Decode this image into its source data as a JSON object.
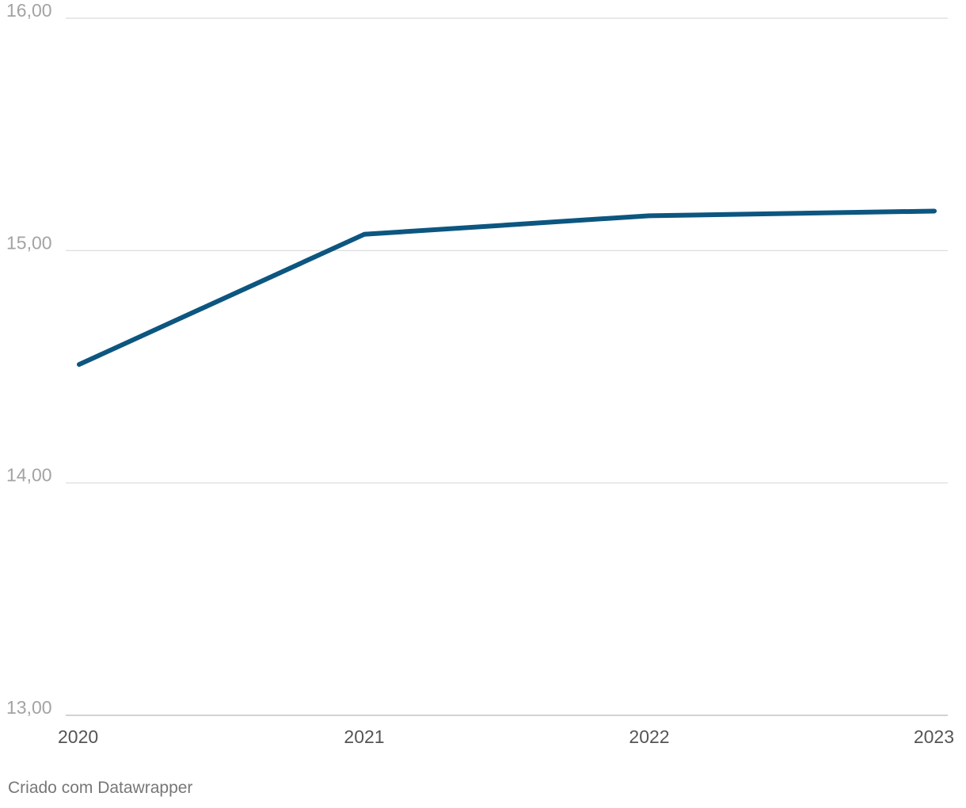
{
  "chart_data": {
    "type": "line",
    "x": [
      "2020",
      "2021",
      "2022",
      "2023"
    ],
    "series": [
      {
        "values": [
          14.51,
          15.07,
          15.15,
          15.17
        ]
      }
    ],
    "yticks": [
      "13,00",
      "14,00",
      "15,00",
      "16,00"
    ],
    "ylim": [
      13,
      16
    ],
    "grid": true,
    "legend": "none"
  },
  "colors": {
    "line": "#0c5680"
  },
  "credit": "Criado com Datawrapper"
}
